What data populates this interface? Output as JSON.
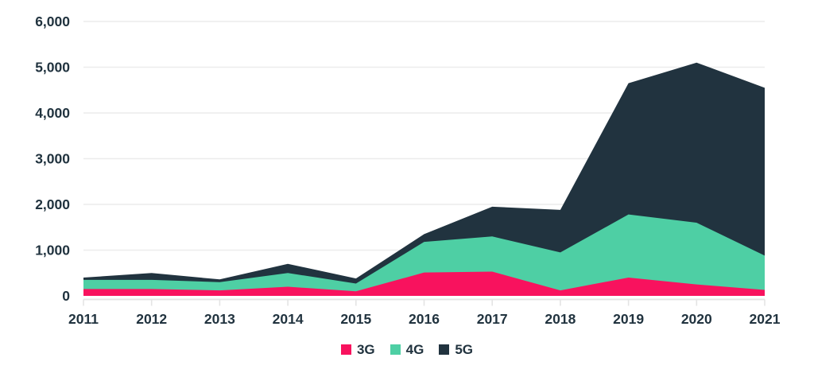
{
  "chart_data": {
    "type": "area",
    "stacked": true,
    "title": "",
    "xlabel": "",
    "ylabel": "",
    "x": [
      "2011",
      "2012",
      "2013",
      "2014",
      "2015",
      "2016",
      "2017",
      "2018",
      "2019",
      "2020",
      "2021"
    ],
    "series": [
      {
        "name": "3G",
        "color": "#f8125e",
        "values": [
          150,
          150,
          120,
          200,
          100,
          510,
          530,
          120,
          400,
          250,
          130
        ]
      },
      {
        "name": "4G",
        "color": "#4ecfa4",
        "values": [
          200,
          200,
          180,
          300,
          170,
          670,
          770,
          830,
          1380,
          1350,
          750
        ]
      },
      {
        "name": "5G",
        "color": "#21333f",
        "values": [
          50,
          150,
          60,
          200,
          110,
          170,
          650,
          930,
          2870,
          3500,
          3670
        ]
      }
    ],
    "totals_by_year": [
      400,
      500,
      360,
      700,
      380,
      1350,
      1950,
      1880,
      4650,
      5100,
      4550
    ],
    "ylim": [
      0,
      6000
    ],
    "ytick_step": 1000,
    "yticks": [
      "0",
      "1,000",
      "2,000",
      "3,000",
      "4,000",
      "5,000",
      "6,000"
    ],
    "grid": "horizontal",
    "legend_position": "bottom"
  },
  "legend": {
    "items": [
      {
        "label": "3G",
        "color": "#f8125e"
      },
      {
        "label": "4G",
        "color": "#4ecfa4"
      },
      {
        "label": "5G",
        "color": "#21333f"
      }
    ]
  },
  "colors": {
    "background": "#ffffff",
    "text": "#21333f",
    "gridline": "#ececec",
    "axis_line": "#e4e4e4",
    "series_3g": "#f8125e",
    "series_4g": "#4ecfa4",
    "series_5g": "#21333f"
  }
}
